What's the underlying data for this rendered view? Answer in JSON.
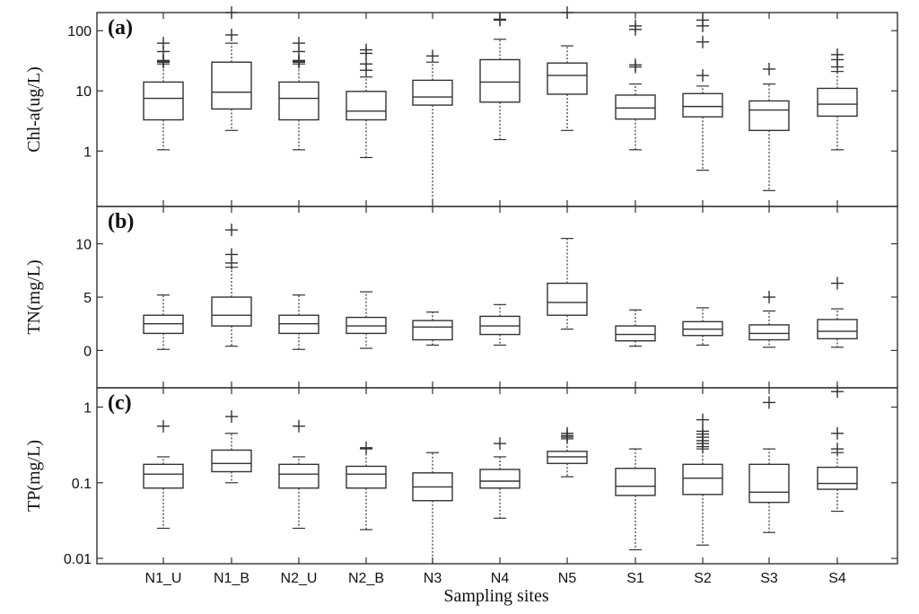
{
  "chart_data": {
    "type": "box",
    "categories": [
      "N1_U",
      "N1_B",
      "N2_U",
      "N2_B",
      "N3",
      "N4",
      "N5",
      "S1",
      "S2",
      "S3",
      "S4"
    ],
    "xlabel": "Sampling sites",
    "panels": [
      {
        "label": "(a)",
        "ylabel": "Chl-a(ug/L)",
        "scale": "log",
        "ylim": [
          0.12,
          200
        ],
        "yticks": [
          1,
          10,
          100
        ],
        "yticklabels": [
          "1",
          "10",
          "100"
        ],
        "boxes": [
          {
            "q1": 3.3,
            "median": 7.5,
            "q3": 14,
            "whisker_low": 1.05,
            "whisker_high": 28,
            "outliers": [
              30,
              31,
              32,
              45,
              62
            ]
          },
          {
            "q1": 5.0,
            "median": 9.5,
            "q3": 30,
            "whisker_low": 2.2,
            "whisker_high": 62,
            "outliers": [
              85,
              200
            ]
          },
          {
            "q1": 3.3,
            "median": 7.5,
            "q3": 14,
            "whisker_low": 1.05,
            "whisker_high": 28,
            "outliers": [
              30,
              31,
              32,
              45,
              62
            ]
          },
          {
            "q1": 3.3,
            "median": 4.6,
            "q3": 9.8,
            "whisker_low": 0.78,
            "whisker_high": 17,
            "outliers": [
              22,
              28,
              42,
              48
            ]
          },
          {
            "q1": 5.8,
            "median": 7.9,
            "q3": 15,
            "whisker_low": 0.12,
            "whisker_high": 30,
            "outliers": [
              38
            ]
          },
          {
            "q1": 6.5,
            "median": 14,
            "q3": 33,
            "whisker_low": 1.55,
            "whisker_high": 72,
            "outliers": [
              150,
              155
            ]
          },
          {
            "q1": 8.8,
            "median": 18,
            "q3": 29,
            "whisker_low": 2.2,
            "whisker_high": 56,
            "outliers": [
              200
            ]
          },
          {
            "q1": 3.4,
            "median": 5.2,
            "q3": 8.5,
            "whisker_low": 1.05,
            "whisker_high": 13,
            "outliers": [
              25,
              27,
              105,
              120
            ]
          },
          {
            "q1": 3.7,
            "median": 5.5,
            "q3": 9.0,
            "whisker_low": 0.48,
            "whisker_high": 12,
            "outliers": [
              18,
              65,
              120,
              150
            ]
          },
          {
            "q1": 2.2,
            "median": 4.8,
            "q3": 6.8,
            "whisker_low": 0.22,
            "whisker_high": 13,
            "outliers": [
              23
            ]
          },
          {
            "q1": 3.8,
            "median": 6.0,
            "q3": 11,
            "whisker_low": 1.05,
            "whisker_high": 21,
            "outliers": [
              25,
              33,
              40
            ]
          }
        ]
      },
      {
        "label": "(b)",
        "ylabel": "TN(mg/L)",
        "scale": "linear",
        "ylim": [
          -3.5,
          13.5
        ],
        "yticks": [
          0,
          5,
          10
        ],
        "yticklabels": [
          "0",
          "5",
          "10"
        ],
        "boxes": [
          {
            "q1": 1.6,
            "median": 2.5,
            "q3": 3.3,
            "whisker_low": 0.1,
            "whisker_high": 5.2,
            "outliers": []
          },
          {
            "q1": 2.3,
            "median": 3.3,
            "q3": 5.0,
            "whisker_low": 0.4,
            "whisker_high": 7.8,
            "outliers": [
              8.2,
              9.0,
              11.3
            ]
          },
          {
            "q1": 1.6,
            "median": 2.5,
            "q3": 3.3,
            "whisker_low": 0.1,
            "whisker_high": 5.2,
            "outliers": []
          },
          {
            "q1": 1.6,
            "median": 2.3,
            "q3": 3.1,
            "whisker_low": 0.2,
            "whisker_high": 5.5,
            "outliers": []
          },
          {
            "q1": 1.0,
            "median": 2.2,
            "q3": 2.8,
            "whisker_low": 0.5,
            "whisker_high": 3.6,
            "outliers": []
          },
          {
            "q1": 1.5,
            "median": 2.3,
            "q3": 3.2,
            "whisker_low": 0.5,
            "whisker_high": 4.3,
            "outliers": []
          },
          {
            "q1": 3.3,
            "median": 4.5,
            "q3": 6.3,
            "whisker_low": 2.0,
            "whisker_high": 10.5,
            "outliers": []
          },
          {
            "q1": 0.9,
            "median": 1.5,
            "q3": 2.3,
            "whisker_low": 0.4,
            "whisker_high": 3.8,
            "outliers": []
          },
          {
            "q1": 1.4,
            "median": 2.0,
            "q3": 2.7,
            "whisker_low": 0.5,
            "whisker_high": 4.0,
            "outliers": []
          },
          {
            "q1": 1.0,
            "median": 1.6,
            "q3": 2.4,
            "whisker_low": 0.3,
            "whisker_high": 3.7,
            "outliers": [
              5.0
            ]
          },
          {
            "q1": 1.1,
            "median": 1.8,
            "q3": 2.9,
            "whisker_low": 0.3,
            "whisker_high": 3.9,
            "outliers": [
              6.3
            ]
          }
        ]
      },
      {
        "label": "(c)",
        "ylabel": "TP(mg/L)",
        "scale": "log",
        "ylim": [
          0.0085,
          1.8
        ],
        "yticks": [
          0.01,
          0.1,
          1
        ],
        "yticklabels": [
          "0.01",
          "0.1",
          "1"
        ],
        "boxes": [
          {
            "q1": 0.085,
            "median": 0.13,
            "q3": 0.175,
            "whisker_low": 0.025,
            "whisker_high": 0.22,
            "outliers": [
              0.56
            ]
          },
          {
            "q1": 0.14,
            "median": 0.18,
            "q3": 0.27,
            "whisker_low": 0.1,
            "whisker_high": 0.45,
            "outliers": [
              0.75
            ]
          },
          {
            "q1": 0.085,
            "median": 0.13,
            "q3": 0.175,
            "whisker_low": 0.025,
            "whisker_high": 0.22,
            "outliers": [
              0.56
            ]
          },
          {
            "q1": 0.085,
            "median": 0.13,
            "q3": 0.165,
            "whisker_low": 0.024,
            "whisker_high": 0.28,
            "outliers": [
              0.29
            ]
          },
          {
            "q1": 0.058,
            "median": 0.088,
            "q3": 0.135,
            "whisker_low": 0.0085,
            "whisker_high": 0.25,
            "outliers": []
          },
          {
            "q1": 0.085,
            "median": 0.105,
            "q3": 0.15,
            "whisker_low": 0.034,
            "whisker_high": 0.22,
            "outliers": [
              0.33
            ]
          },
          {
            "q1": 0.18,
            "median": 0.22,
            "q3": 0.26,
            "whisker_low": 0.12,
            "whisker_high": 0.38,
            "outliers": [
              0.4,
              0.42,
              0.45
            ]
          },
          {
            "q1": 0.068,
            "median": 0.09,
            "q3": 0.155,
            "whisker_low": 0.013,
            "whisker_high": 0.28,
            "outliers": []
          },
          {
            "q1": 0.07,
            "median": 0.115,
            "q3": 0.175,
            "whisker_low": 0.015,
            "whisker_high": 0.28,
            "outliers": [
              0.3,
              0.33,
              0.36,
              0.4,
              0.44,
              0.48,
              0.68
            ]
          },
          {
            "q1": 0.055,
            "median": 0.075,
            "q3": 0.175,
            "whisker_low": 0.022,
            "whisker_high": 0.28,
            "outliers": [
              1.15
            ]
          },
          {
            "q1": 0.082,
            "median": 0.098,
            "q3": 0.16,
            "whisker_low": 0.042,
            "whisker_high": 0.25,
            "outliers": [
              0.28,
              0.45,
              1.6
            ]
          }
        ]
      }
    ]
  }
}
